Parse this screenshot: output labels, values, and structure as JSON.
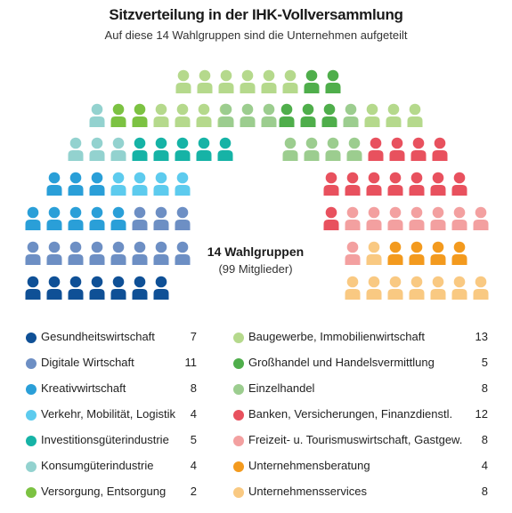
{
  "title": "Sitzverteilung in der IHK-Vollversammlung",
  "subtitle": "Auf diese 14 Wahlgruppen sind die Unternehmen aufgeteilt",
  "center": {
    "title": "14 Wahlgruppen",
    "subtitle": "(99 Mitglieder)"
  },
  "chart_data": {
    "type": "parliament",
    "total": 99,
    "groups": [
      {
        "name": "Gesundheitswirtschaft",
        "seats": 7,
        "color": "#0f5096"
      },
      {
        "name": "Digitale Wirtschaft",
        "seats": 11,
        "color": "#6d8fc4"
      },
      {
        "name": "Kreativwirtschaft",
        "seats": 8,
        "color": "#2a9fd8"
      },
      {
        "name": "Verkehr, Mobilität, Logistik",
        "seats": 4,
        "color": "#5dcbee"
      },
      {
        "name": "Investitionsgüterindustrie",
        "seats": 5,
        "color": "#16b3a6"
      },
      {
        "name": "Konsumgüterindustrie",
        "seats": 4,
        "color": "#93d2cf"
      },
      {
        "name": "Versorgung, Entsorgung",
        "seats": 2,
        "color": "#7cc242"
      },
      {
        "name": "Baugewerbe, Immobilienwirtschaft",
        "seats": 13,
        "color": "#b5d98c"
      },
      {
        "name": "Großhandel und Handelsvermittlung",
        "seats": 5,
        "color": "#4fae4b"
      },
      {
        "name": "Einzelhandel",
        "seats": 8,
        "color": "#9ccd8f"
      },
      {
        "name": "Banken, Versicherungen, Finanzdienstl.",
        "seats": 12,
        "color": "#e8515e"
      },
      {
        "name": "Freizeit- u. Tourismuswirtschaft, Gastgew.",
        "seats": 8,
        "color": "#f3a0a0"
      },
      {
        "name": "Unternehmensberatung",
        "seats": 4,
        "color": "#f39a1e"
      },
      {
        "name": "Unternehmensservices",
        "seats": 8,
        "color": "#f9c982"
      }
    ]
  }
}
